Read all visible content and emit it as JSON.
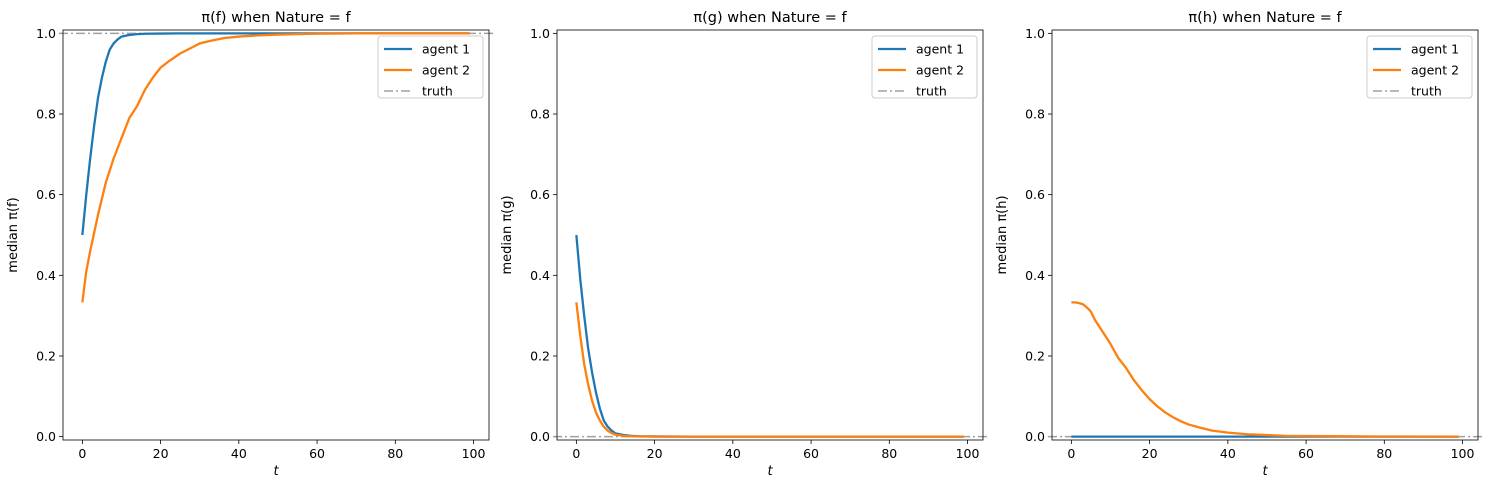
{
  "chart_data": [
    {
      "type": "line",
      "title": "π(f) when Nature = f",
      "xlabel": "t",
      "ylabel": "median π(f)",
      "xlim": [
        -4.95,
        103.95
      ],
      "ylim": [
        -0.0083,
        1.0083
      ],
      "xticks": [
        0,
        20,
        40,
        60,
        80,
        100
      ],
      "yticks": [
        0.0,
        0.2,
        0.4,
        0.6,
        0.8,
        1.0
      ],
      "xtick_labels": [
        "0",
        "20",
        "40",
        "60",
        "80",
        "100"
      ],
      "ytick_labels": [
        "0.0",
        "0.2",
        "0.4",
        "0.6",
        "0.8",
        "1.0"
      ],
      "legend_position": "top-right",
      "truth": 1.0,
      "series": [
        {
          "name": "agent 1",
          "color": "#1f77b4",
          "x": [
            0,
            1,
            2,
            3,
            4,
            5,
            6,
            7,
            8,
            9,
            10,
            12,
            14,
            16,
            20,
            25,
            30,
            40,
            60,
            80,
            99
          ],
          "y": [
            0.5,
            0.6,
            0.69,
            0.77,
            0.84,
            0.89,
            0.93,
            0.96,
            0.975,
            0.985,
            0.992,
            0.996,
            0.998,
            0.999,
            0.9995,
            1.0,
            1.0,
            1.0,
            1.0,
            1.0,
            1.0
          ]
        },
        {
          "name": "agent 2",
          "color": "#ff7f0e",
          "x": [
            0,
            1,
            2,
            4,
            6,
            8,
            10,
            12,
            14,
            16,
            18,
            20,
            22,
            25,
            28,
            30,
            33,
            36,
            40,
            45,
            50,
            55,
            60,
            70,
            80,
            90,
            99
          ],
          "y": [
            0.333,
            0.41,
            0.46,
            0.55,
            0.63,
            0.69,
            0.74,
            0.79,
            0.82,
            0.86,
            0.89,
            0.915,
            0.93,
            0.95,
            0.965,
            0.975,
            0.982,
            0.988,
            0.992,
            0.995,
            0.997,
            0.998,
            0.999,
            1.0,
            1.0,
            1.0,
            1.0
          ]
        }
      ]
    },
    {
      "type": "line",
      "title": "π(g) when Nature = f",
      "xlabel": "t",
      "ylabel": "median π(g)",
      "xlim": [
        -4.95,
        103.95
      ],
      "ylim": [
        -0.0083,
        1.0083
      ],
      "xticks": [
        0,
        20,
        40,
        60,
        80,
        100
      ],
      "yticks": [
        0.0,
        0.2,
        0.4,
        0.6,
        0.8,
        1.0
      ],
      "xtick_labels": [
        "0",
        "20",
        "40",
        "60",
        "80",
        "100"
      ],
      "ytick_labels": [
        "0.0",
        "0.2",
        "0.4",
        "0.6",
        "0.8",
        "1.0"
      ],
      "legend_position": "top-right",
      "truth": 0.0,
      "series": [
        {
          "name": "agent 1",
          "color": "#1f77b4",
          "x": [
            0,
            1,
            2,
            3,
            4,
            5,
            6,
            7,
            8,
            9,
            10,
            12,
            14,
            16,
            20,
            30,
            40,
            60,
            80,
            99
          ],
          "y": [
            0.5,
            0.39,
            0.3,
            0.22,
            0.16,
            0.11,
            0.07,
            0.04,
            0.025,
            0.015,
            0.008,
            0.004,
            0.002,
            0.001,
            0.0005,
            0.0,
            0.0,
            0.0,
            0.0,
            0.0
          ]
        },
        {
          "name": "agent 2",
          "color": "#ff7f0e",
          "x": [
            0,
            1,
            2,
            3,
            4,
            5,
            6,
            7,
            8,
            9,
            10,
            12,
            14,
            16,
            20,
            30,
            40,
            60,
            80,
            99
          ],
          "y": [
            0.333,
            0.25,
            0.18,
            0.13,
            0.09,
            0.06,
            0.04,
            0.025,
            0.015,
            0.009,
            0.005,
            0.002,
            0.001,
            0.0005,
            0.0,
            0.0,
            0.0,
            0.0,
            0.0,
            0.0
          ]
        }
      ]
    },
    {
      "type": "line",
      "title": "π(h) when Nature = f",
      "xlabel": "t",
      "ylabel": "median π(h)",
      "xlim": [
        -4.95,
        103.95
      ],
      "ylim": [
        -0.0083,
        1.0083
      ],
      "xticks": [
        0,
        20,
        40,
        60,
        80,
        100
      ],
      "yticks": [
        0.0,
        0.2,
        0.4,
        0.6,
        0.8,
        1.0
      ],
      "xtick_labels": [
        "0",
        "20",
        "40",
        "60",
        "80",
        "100"
      ],
      "ytick_labels": [
        "0.0",
        "0.2",
        "0.4",
        "0.6",
        "0.8",
        "1.0"
      ],
      "legend_position": "top-right",
      "truth": 0.0,
      "series": [
        {
          "name": "agent 1",
          "color": "#1f77b4",
          "x": [
            0,
            20,
            40,
            60,
            80,
            99
          ],
          "y": [
            0.0,
            0.0,
            0.0,
            0.0,
            0.0,
            0.0
          ]
        },
        {
          "name": "agent 2",
          "color": "#ff7f0e",
          "x": [
            0,
            1,
            2,
            3,
            4,
            5,
            6,
            8,
            10,
            12,
            14,
            16,
            18,
            20,
            22,
            24,
            26,
            28,
            30,
            33,
            36,
            40,
            45,
            50,
            55,
            60,
            70,
            80,
            99
          ],
          "y": [
            0.333,
            0.333,
            0.331,
            0.328,
            0.32,
            0.31,
            0.29,
            0.26,
            0.23,
            0.195,
            0.17,
            0.14,
            0.115,
            0.093,
            0.075,
            0.06,
            0.048,
            0.038,
            0.03,
            0.022,
            0.015,
            0.01,
            0.006,
            0.004,
            0.002,
            0.0015,
            0.0008,
            0.0004,
            0.0
          ]
        }
      ]
    }
  ],
  "legend": {
    "truth_label": "truth",
    "truth_color": "#a0a0a0"
  }
}
